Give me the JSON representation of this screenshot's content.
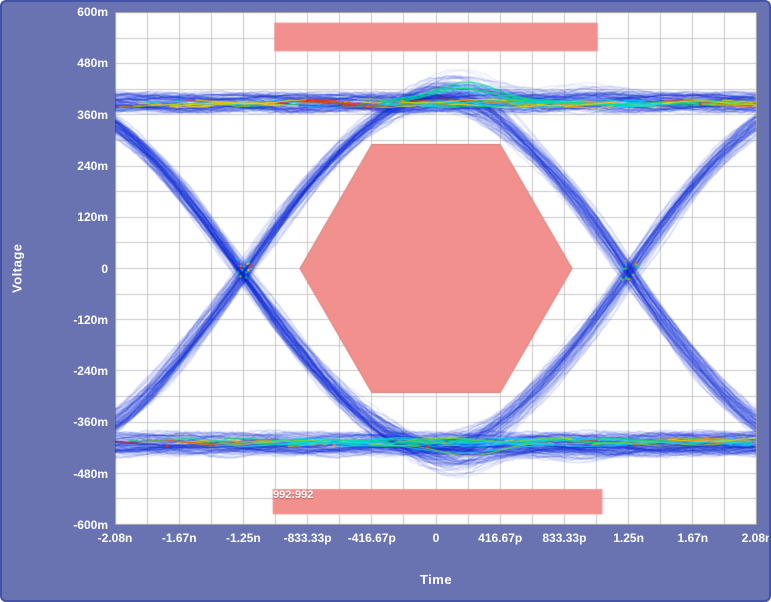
{
  "frame": {
    "bg_color": "#6973b1",
    "border_color": "#4353a5"
  },
  "axes": {
    "y_label": "Voltage",
    "x_label": "Time",
    "y_ticks": [
      "600m",
      "480m",
      "360m",
      "240m",
      "120m",
      "0",
      "-120m",
      "-240m",
      "-360m",
      "-480m",
      "-600m"
    ],
    "x_ticks": [
      "-2.08n",
      "-1.67n",
      "-1.25n",
      "-833.33p",
      "-416.67p",
      "0",
      "416.67p",
      "833.33p",
      "1.25n",
      "1.67n",
      "2.08n"
    ]
  },
  "annotation": {
    "mask_hits": "992:992"
  },
  "chart_data": {
    "type": "heatmap",
    "subtype": "eye-diagram-with-mask-test",
    "title": "",
    "xlabel": "Time",
    "ylabel": "Voltage",
    "x_unit": "s",
    "y_unit": "V",
    "x_range_ns": [
      -2.0833,
      2.0833
    ],
    "y_range_V": [
      -0.6,
      0.6
    ],
    "x_tick_values_ns": [
      -2.0833,
      -1.6667,
      -1.25,
      -0.83333,
      -0.41667,
      0,
      0.41667,
      0.83333,
      1.25,
      1.6667,
      2.0833
    ],
    "y_tick_values_V": [
      0.6,
      0.48,
      0.36,
      0.24,
      0.12,
      0,
      -0.12,
      -0.24,
      -0.36,
      -0.48,
      -0.6
    ],
    "grid": {
      "divisions_x": 20,
      "divisions_y": 20,
      "color": "#c9c9c9",
      "on": true
    },
    "unit_interval_ns": 2.5,
    "eye_high_V": 0.39,
    "eye_low_V": -0.41,
    "crossings_ns": [
      -1.25,
      1.25
    ],
    "trace_base_rgb": "10,40,216",
    "trace_palette": [
      "#00d2ff",
      "#00e076",
      "#8ce000",
      "#ffd800",
      "#ff8a00",
      "#ff2e00"
    ],
    "mask": {
      "color": "#f2908e",
      "edge_color": "#d47c74",
      "hexagon_ns_V": [
        [
          -0.883,
          0
        ],
        [
          -0.417,
          0.29
        ],
        [
          0.417,
          0.29
        ],
        [
          0.883,
          0
        ],
        [
          0.417,
          -0.29
        ],
        [
          -0.417,
          -0.29
        ]
      ],
      "top_bar": {
        "x_ns": [
          -1.05,
          1.05
        ],
        "y_V": [
          0.508,
          0.575
        ]
      },
      "bottom_bar": {
        "x_ns": [
          -1.06,
          1.08
        ],
        "y_V": [
          -0.575,
          -0.516
        ]
      },
      "result": "992:992"
    }
  }
}
